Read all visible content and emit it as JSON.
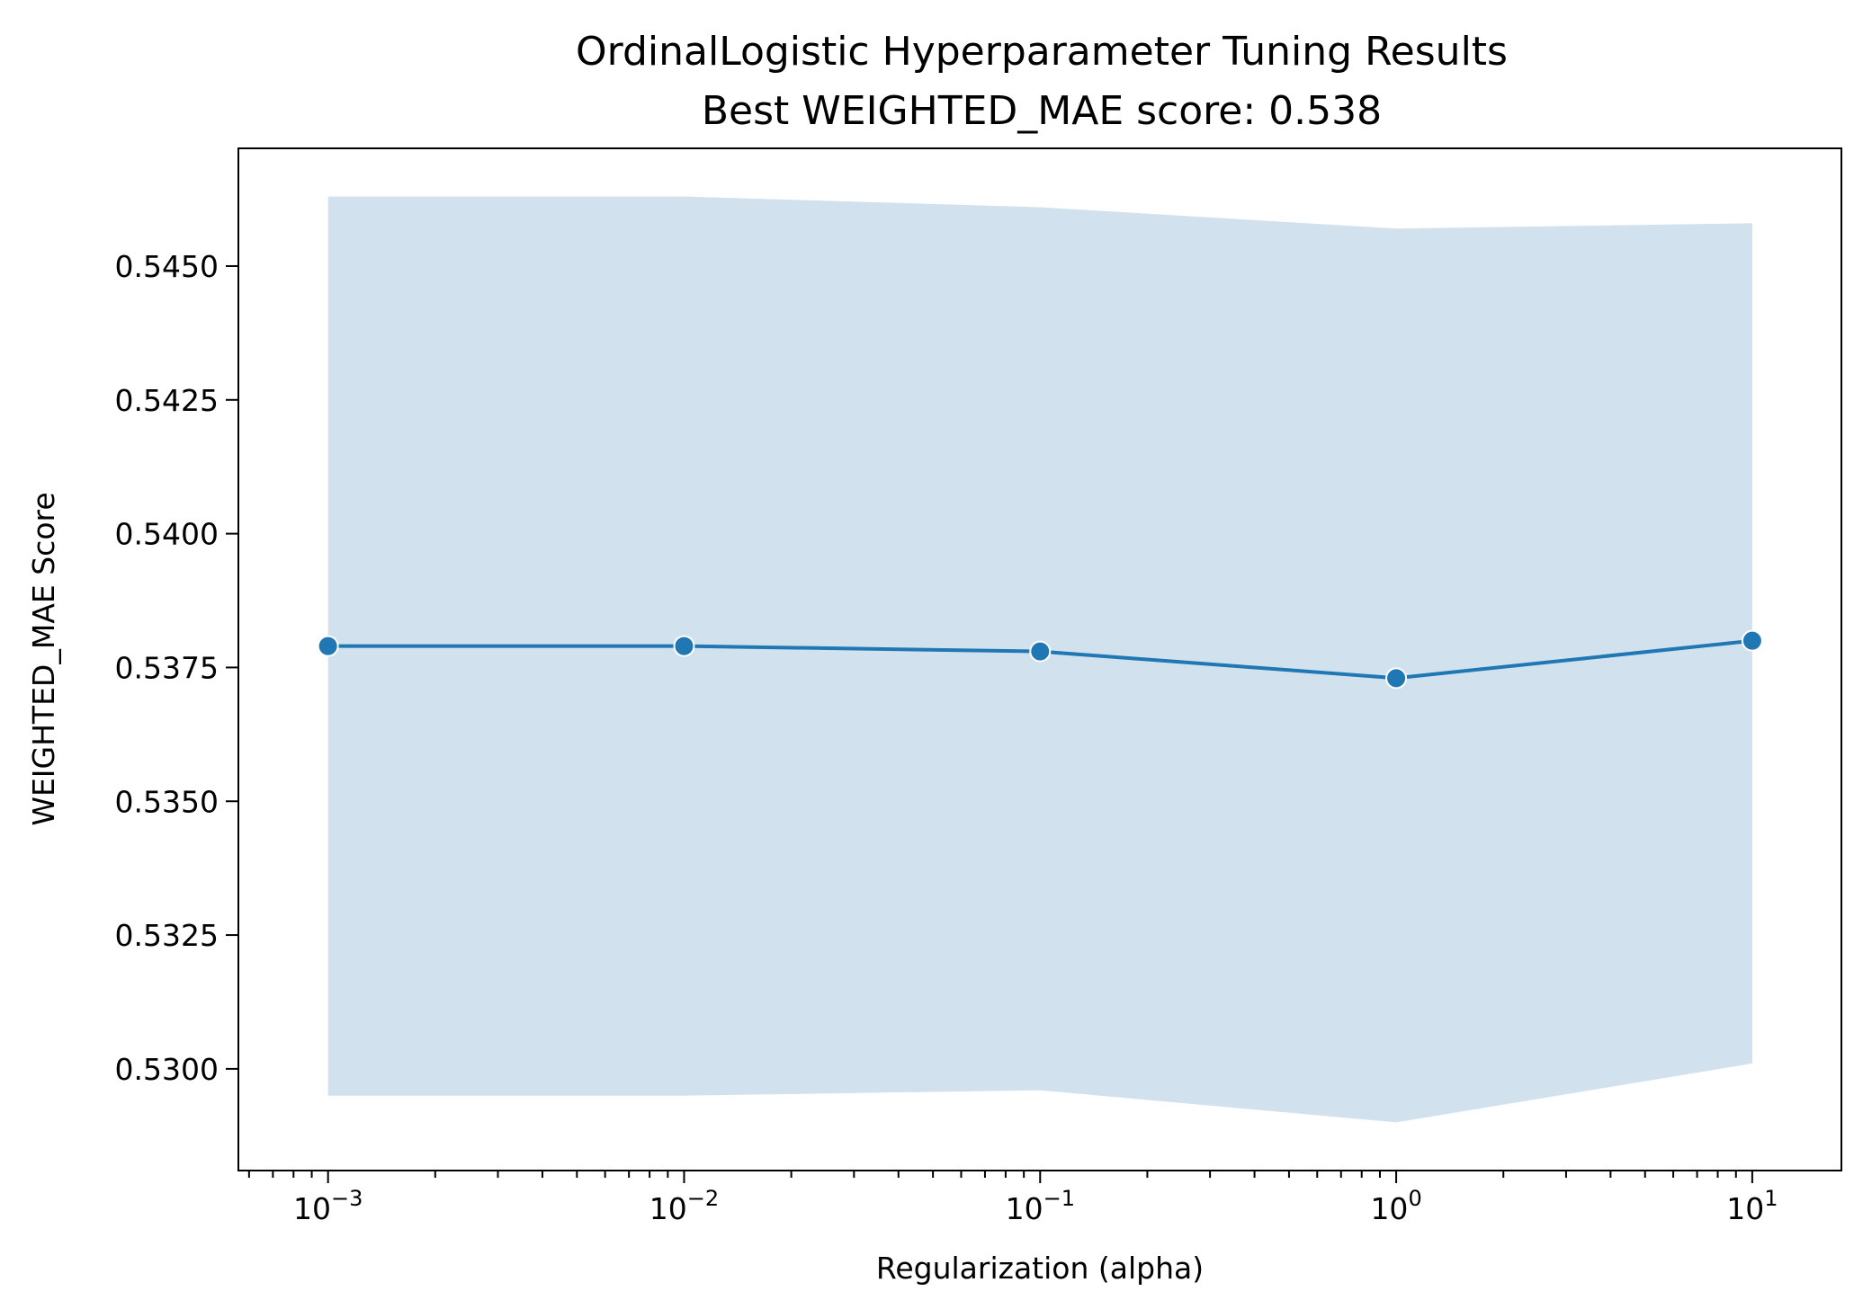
{
  "chart_data": {
    "type": "line",
    "title": "OrdinalLogistic Hyperparameter Tuning Results",
    "subtitle": "Best WEIGHTED_MAE score: 0.538",
    "xlabel": "Regularization (alpha)",
    "ylabel": "WEIGHTED_MAE Score",
    "x_scale": "log",
    "x_ticks": [
      {
        "value": 0.001,
        "base": "10",
        "exponent": "−3"
      },
      {
        "value": 0.01,
        "base": "10",
        "exponent": "−2"
      },
      {
        "value": 0.1,
        "base": "10",
        "exponent": "−1"
      },
      {
        "value": 1,
        "base": "10",
        "exponent": "0"
      },
      {
        "value": 10,
        "base": "10",
        "exponent": "1"
      }
    ],
    "y_ticks": [
      "0.5300",
      "0.5325",
      "0.5350",
      "0.5375",
      "0.5400",
      "0.5425",
      "0.5450"
    ],
    "xlim": [
      0.00056,
      17.8
    ],
    "ylim": [
      0.5281,
      0.5472
    ],
    "grid": false,
    "series": [
      {
        "color": "#1f77b4",
        "band_color": "#d1e2ee",
        "x": [
          0.001,
          0.01,
          0.1,
          1,
          10
        ],
        "y": [
          0.5379,
          0.5379,
          0.5378,
          0.5373,
          0.538
        ],
        "lower": [
          0.5295,
          0.5295,
          0.5296,
          0.529,
          0.5301
        ],
        "upper": [
          0.5463,
          0.5463,
          0.5461,
          0.5457,
          0.5458
        ]
      }
    ]
  }
}
